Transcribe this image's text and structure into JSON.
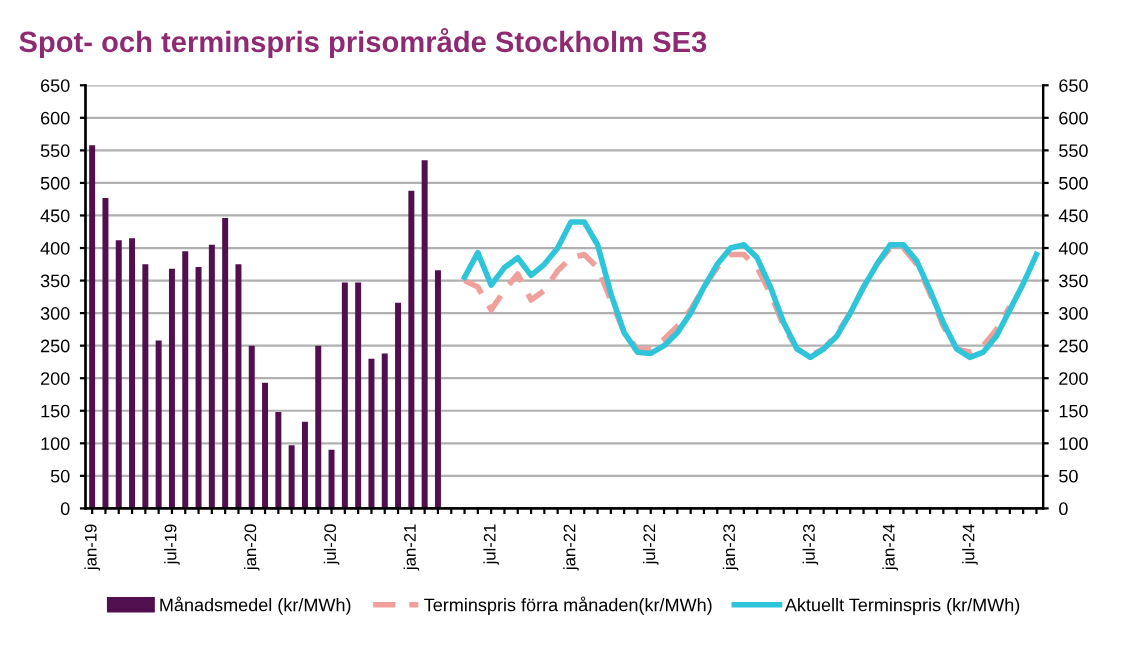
{
  "chart_data": {
    "type": "bar",
    "title": "Spot- och terminspris prisområde Stockholm SE3",
    "categories": [
      "jan-19",
      null,
      null,
      null,
      null,
      null,
      "jul-19",
      null,
      null,
      null,
      null,
      null,
      "jan-20",
      null,
      null,
      null,
      null,
      null,
      "jul-20",
      null,
      null,
      null,
      null,
      null,
      "jan-21",
      null,
      null,
      null,
      null,
      null,
      "jul-21",
      null,
      null,
      null,
      null,
      null,
      "jan-22",
      null,
      null,
      null,
      null,
      null,
      "jul-22",
      null,
      null,
      null,
      null,
      null,
      "jan-23",
      null,
      null,
      null,
      null,
      null,
      "jul-23",
      null,
      null,
      null,
      null,
      null,
      "jan-24",
      null,
      null,
      null,
      null,
      null,
      "jul-24",
      null,
      null,
      null,
      null,
      null
    ],
    "series": [
      {
        "name": "Månadsmedel (kr/MWh)",
        "color": "#520f4f",
        "values": [
          558,
          477,
          412,
          415,
          375,
          258,
          368,
          395,
          371,
          405,
          446,
          375,
          250,
          193,
          148,
          97,
          133,
          250,
          90,
          347,
          347,
          230,
          238,
          316,
          488,
          535,
          366,
          null,
          null,
          null,
          null,
          null,
          null,
          null,
          null,
          null,
          null,
          null,
          null,
          null,
          null,
          null,
          null,
          null,
          null,
          null,
          null,
          null,
          null,
          null,
          null,
          null,
          null,
          null,
          null,
          null,
          null,
          null,
          null,
          null,
          null,
          null,
          null,
          null,
          null,
          null,
          null,
          null,
          null,
          null,
          null,
          null
        ]
      },
      {
        "name": "Terminspris förra månaden(kr/MWh)",
        "type": "line",
        "line_style": "dashed",
        "color": "#f0a09a",
        "values": [
          null,
          null,
          null,
          null,
          null,
          null,
          null,
          null,
          null,
          null,
          null,
          null,
          null,
          null,
          null,
          null,
          null,
          null,
          null,
          null,
          null,
          null,
          null,
          null,
          null,
          null,
          null,
          null,
          350,
          340,
          305,
          335,
          360,
          320,
          335,
          365,
          385,
          390,
          370,
          320,
          270,
          245,
          245,
          260,
          280,
          305,
          340,
          370,
          390,
          390,
          370,
          330,
          280,
          245,
          235,
          245,
          268,
          300,
          340,
          375,
          400,
          400,
          375,
          330,
          280,
          245,
          240,
          250,
          275,
          310,
          null,
          null
        ]
      },
      {
        "name": "Aktuellt Terminspris (kr/MWh)",
        "type": "line",
        "line_style": "solid",
        "color": "#2ec4da",
        "values": [
          null,
          null,
          null,
          null,
          null,
          null,
          null,
          null,
          null,
          null,
          null,
          null,
          null,
          null,
          null,
          null,
          null,
          null,
          null,
          null,
          null,
          null,
          null,
          null,
          null,
          null,
          null,
          null,
          355,
          393,
          343,
          370,
          385,
          358,
          375,
          400,
          440,
          440,
          405,
          330,
          270,
          240,
          238,
          250,
          270,
          300,
          340,
          375,
          400,
          405,
          385,
          340,
          285,
          245,
          232,
          245,
          265,
          300,
          340,
          375,
          405,
          405,
          380,
          335,
          285,
          245,
          232,
          240,
          265,
          305,
          345,
          390
        ]
      }
    ],
    "ylim": [
      0,
      650
    ],
    "yticks": [
      0,
      50,
      100,
      150,
      200,
      250,
      300,
      350,
      400,
      450,
      500,
      550,
      600,
      650
    ],
    "y2lim": [
      0,
      650
    ],
    "y2ticks": [
      0,
      50,
      100,
      150,
      200,
      250,
      300,
      350,
      400,
      450,
      500,
      550,
      600,
      650
    ],
    "grid": "y",
    "legend": "bottom",
    "marker": "none"
  }
}
